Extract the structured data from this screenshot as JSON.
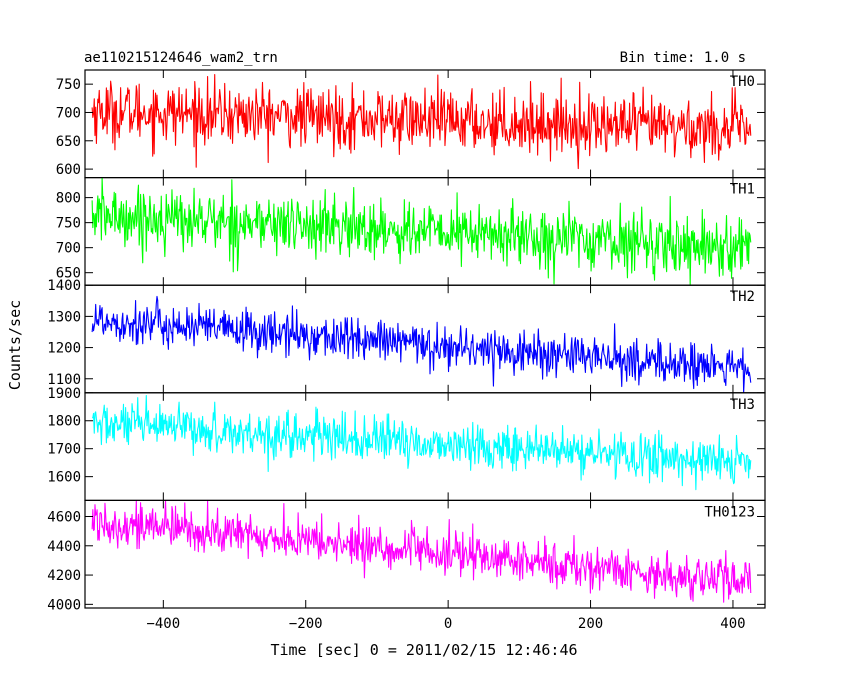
{
  "chart_data": {
    "type": "line",
    "title": "ae110215124646_wam2_trn",
    "subtitle": "Bin time: 1.0 s",
    "xlabel": "Time [sec] 0 = 2011/02/15 12:46:46",
    "ylabel": "Counts/sec",
    "xlim": [
      -510,
      445
    ],
    "x_ticks": [
      -400,
      -200,
      0,
      200,
      400
    ],
    "x_tick_labels": [
      "−400",
      "−200",
      "0",
      "200",
      "400"
    ],
    "x_range": [
      -500,
      425
    ],
    "panels": [
      {
        "name": "TH0",
        "color": "#ff0000",
        "ylim": [
          585,
          775
        ],
        "y_ticks": [
          600,
          650,
          700,
          750
        ],
        "y_tick_labels": [
          "600",
          "650",
          "700",
          "750"
        ],
        "trend_start": 703,
        "trend_end": 670,
        "noise_sd": 27
      },
      {
        "name": "TH1",
        "color": "#00ff00",
        "ylim": [
          625,
          840
        ],
        "y_ticks": [
          650,
          700,
          750,
          800
        ],
        "y_tick_labels": [
          "650",
          "700",
          "750",
          "800"
        ],
        "trend_start": 765,
        "trend_end": 700,
        "noise_sd": 30
      },
      {
        "name": "TH2",
        "color": "#0000ff",
        "ylim": [
          1055,
          1400
        ],
        "y_ticks": [
          1100,
          1200,
          1300,
          1400
        ],
        "y_tick_labels": [
          "1100",
          "1200",
          "1300",
          "1400"
        ],
        "trend_start": 1290,
        "trend_end": 1130,
        "noise_sd": 35
      },
      {
        "name": "TH3",
        "color": "#00ffff",
        "ylim": [
          1515,
          1900
        ],
        "y_ticks": [
          1600,
          1700,
          1800,
          1900
        ],
        "y_tick_labels": [
          "1600",
          "1700",
          "1800",
          "1900"
        ],
        "trend_start": 1790,
        "trend_end": 1650,
        "noise_sd": 40
      },
      {
        "name": "TH0123",
        "color": "#ff00ff",
        "ylim": [
          3975,
          4710
        ],
        "y_ticks": [
          4000,
          4200,
          4400,
          4600
        ],
        "y_tick_labels": [
          "4000",
          "4200",
          "4400",
          "4600"
        ],
        "trend_start": 4570,
        "trend_end": 4150,
        "noise_sd": 75
      }
    ],
    "grid": false,
    "legend": "none"
  }
}
